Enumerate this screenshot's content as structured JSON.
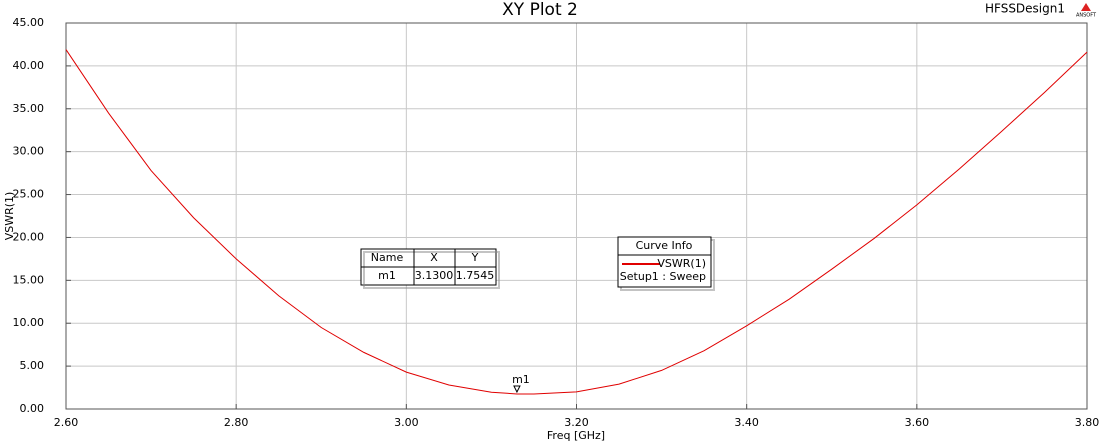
{
  "chart_data": {
    "type": "line",
    "title": "XY Plot 2",
    "design_name": "HFSSDesign1",
    "logo_text": "ANSOFT",
    "x_label": "Freq [GHz]",
    "y_label": "VSWR(1)",
    "x": [
      2.6,
      2.65,
      2.7,
      2.75,
      2.8,
      2.85,
      2.9,
      2.95,
      3.0,
      3.05,
      3.1,
      3.13,
      3.15,
      3.2,
      3.25,
      3.3,
      3.35,
      3.4,
      3.45,
      3.5,
      3.55,
      3.6,
      3.65,
      3.7,
      3.75,
      3.8
    ],
    "series": [
      {
        "name": "VSWR(1)",
        "solution": "Setup1 : Sweep",
        "color": "#e00000",
        "values": [
          41.9,
          34.5,
          27.8,
          22.3,
          17.5,
          13.2,
          9.5,
          6.6,
          4.3,
          2.8,
          1.95,
          1.7545,
          1.75,
          2.0,
          2.9,
          4.5,
          6.8,
          9.7,
          12.8,
          16.3,
          19.9,
          23.8,
          28.0,
          32.4,
          36.9,
          41.6
        ]
      }
    ],
    "xlim": [
      2.6,
      3.8
    ],
    "xticks": [
      {
        "value": 2.6,
        "label": "2.60"
      },
      {
        "value": 2.8,
        "label": "2.80"
      },
      {
        "value": 3.0,
        "label": "3.00"
      },
      {
        "value": 3.2,
        "label": "3.20"
      },
      {
        "value": 3.4,
        "label": "3.40"
      },
      {
        "value": 3.6,
        "label": "3.60"
      },
      {
        "value": 3.8,
        "label": "3.80"
      }
    ],
    "ylim": [
      0,
      45
    ],
    "yticks": [
      {
        "value": 0,
        "label": "0.00"
      },
      {
        "value": 5,
        "label": "5.00"
      },
      {
        "value": 10,
        "label": "10.00"
      },
      {
        "value": 15,
        "label": "15.00"
      },
      {
        "value": 20,
        "label": "20.00"
      },
      {
        "value": 25,
        "label": "25.00"
      },
      {
        "value": 30,
        "label": "30.00"
      },
      {
        "value": 35,
        "label": "35.00"
      },
      {
        "value": 40,
        "label": "40.00"
      },
      {
        "value": 45,
        "label": "45.00"
      }
    ],
    "grid": true,
    "legend_title": "Curve Info",
    "markers": [
      {
        "name": "m1",
        "x": 3.13,
        "y": 1.7545
      }
    ],
    "marker_table": {
      "columns": [
        "Name",
        "X",
        "Y"
      ],
      "rows": [
        [
          "m1",
          "3.1300",
          "1.7545"
        ]
      ]
    }
  }
}
